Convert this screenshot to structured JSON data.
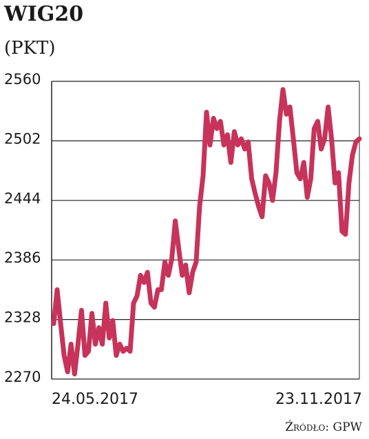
{
  "chart_data": {
    "type": "line",
    "title": "WIG20",
    "subtitle": "(PKT)",
    "source": "Źródło: GPW",
    "categories": [
      "24.05.2017",
      null,
      null,
      null,
      null,
      null,
      null,
      null,
      null,
      null,
      null,
      null,
      null,
      null,
      null,
      null,
      null,
      null,
      null,
      null,
      null,
      null,
      null,
      null,
      null,
      null,
      null,
      null,
      null,
      null,
      null,
      null,
      null,
      null,
      null,
      null,
      null,
      null,
      null,
      null,
      null,
      null,
      null,
      null,
      null,
      null,
      null,
      null,
      null,
      null,
      null,
      null,
      null,
      null,
      null,
      null,
      null,
      null,
      null,
      null,
      null,
      null,
      null,
      null,
      null,
      null,
      null,
      null,
      null,
      null,
      null,
      null,
      null,
      null,
      null,
      null,
      null,
      null,
      null,
      null,
      null,
      null,
      null,
      null,
      null,
      null,
      null,
      null,
      "23.11.2017"
    ],
    "series": [
      {
        "name": "WIG20",
        "color": "#c7335a",
        "values": [
          2324,
          2357,
          2324,
          2293,
          2277,
          2304,
          2275,
          2304,
          2337,
          2293,
          2297,
          2334,
          2304,
          2320,
          2304,
          2344,
          2310,
          2327,
          2293,
          2304,
          2297,
          2300,
          2297,
          2344,
          2351,
          2371,
          2364,
          2374,
          2344,
          2340,
          2357,
          2357,
          2384,
          2371,
          2387,
          2424,
          2397,
          2371,
          2381,
          2354,
          2374,
          2384,
          2438,
          2468,
          2530,
          2498,
          2524,
          2514,
          2521,
          2498,
          2508,
          2481,
          2511,
          2498,
          2504,
          2494,
          2501,
          2465,
          2451,
          2438,
          2428,
          2468,
          2461,
          2444,
          2471,
          2521,
          2552,
          2528,
          2535,
          2504,
          2471,
          2465,
          2481,
          2447,
          2465,
          2514,
          2521,
          2494,
          2504,
          2535,
          2504,
          2461,
          2471,
          2414,
          2411,
          2461,
          2488,
          2501,
          2504
        ]
      }
    ],
    "ylim": [
      2270,
      2560
    ],
    "yticks": [
      2270,
      2328,
      2386,
      2444,
      2502,
      2560
    ],
    "grid": true
  }
}
